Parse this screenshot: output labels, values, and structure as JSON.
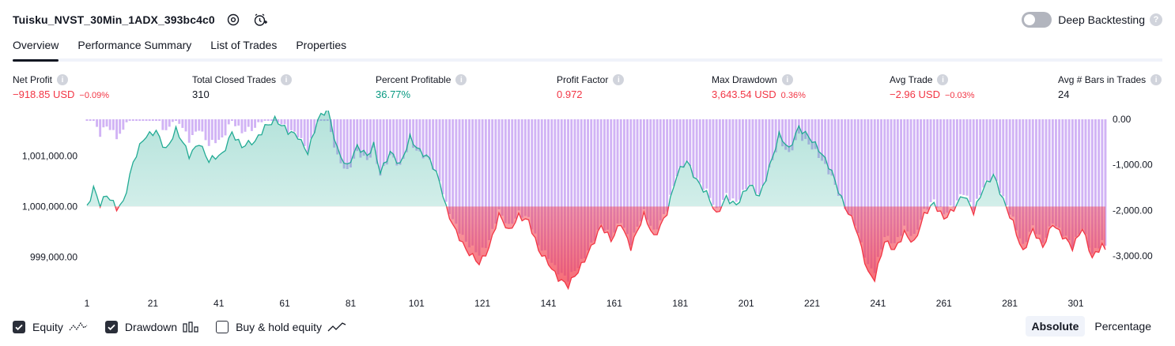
{
  "header": {
    "title": "Tuisku_NVST_30Min_1ADX_393bc4c0",
    "deep_backtesting_label": "Deep Backtesting",
    "deep_backtesting_on": false
  },
  "tabs": [
    {
      "label": "Overview",
      "active": true
    },
    {
      "label": "Performance Summary",
      "active": false
    },
    {
      "label": "List of Trades",
      "active": false
    },
    {
      "label": "Properties",
      "active": false
    }
  ],
  "metrics": {
    "net_profit": {
      "label": "Net Profit",
      "value": "−918.85 USD",
      "pct": "−0.09%"
    },
    "total_closed_trades": {
      "label": "Total Closed Trades",
      "value": "310"
    },
    "percent_profitable": {
      "label": "Percent Profitable",
      "value": "36.77%"
    },
    "profit_factor": {
      "label": "Profit Factor",
      "value": "0.972"
    },
    "max_drawdown": {
      "label": "Max Drawdown",
      "value": "3,643.54 USD",
      "pct": "0.36%"
    },
    "avg_trade": {
      "label": "Avg Trade",
      "value": "−2.96 USD",
      "pct": "−0.03%"
    },
    "avg_bars": {
      "label": "Avg # Bars in Trades",
      "value": "24"
    }
  },
  "chart_data": {
    "type": "area",
    "baseline_equity": 1000000,
    "x_ticks": [
      "1",
      "21",
      "41",
      "61",
      "81",
      "101",
      "121",
      "141",
      "161",
      "181",
      "201",
      "221",
      "241",
      "261",
      "281",
      "301"
    ],
    "y_left_ticks": [
      "1,001,000.00",
      "1,000,000.00",
      "999,000.00"
    ],
    "y_right_ticks": [
      "0.00",
      "-1,000.00",
      "-2,000.00",
      "-3,000.00"
    ],
    "y_left_range": [
      998300,
      1001900
    ],
    "y_right_range": [
      -3800,
      0
    ],
    "series": [
      {
        "name": "Equity",
        "color_positive": "#22ab94",
        "color_negative": "#f23645",
        "x_range": [
          1,
          310
        ],
        "key_points": [
          [
            1,
            1000000
          ],
          [
            3,
            1000400
          ],
          [
            5,
            1000050
          ],
          [
            7,
            1000200
          ],
          [
            10,
            999950
          ],
          [
            12,
            1000100
          ],
          [
            15,
            1000900
          ],
          [
            18,
            1001300
          ],
          [
            22,
            1001500
          ],
          [
            25,
            1001150
          ],
          [
            28,
            1001500
          ],
          [
            32,
            1001000
          ],
          [
            35,
            1001300
          ],
          [
            38,
            1000900
          ],
          [
            42,
            1001000
          ],
          [
            45,
            1001500
          ],
          [
            48,
            1001200
          ],
          [
            52,
            1001250
          ],
          [
            55,
            1001600
          ],
          [
            58,
            1001750
          ],
          [
            62,
            1001450
          ],
          [
            65,
            1001400
          ],
          [
            68,
            1001100
          ],
          [
            71,
            1001700
          ],
          [
            74,
            1001900
          ],
          [
            77,
            1001150
          ],
          [
            80,
            1000800
          ],
          [
            83,
            1001150
          ],
          [
            86,
            1001000
          ],
          [
            88,
            1001250
          ],
          [
            90,
            1000700
          ],
          [
            93,
            1001050
          ],
          [
            96,
            1000800
          ],
          [
            99,
            1001400
          ],
          [
            102,
            1001100
          ],
          [
            105,
            1000900
          ],
          [
            108,
            1000500
          ],
          [
            110,
            1000000
          ],
          [
            113,
            999500
          ],
          [
            116,
            999100
          ],
          [
            120,
            998900
          ],
          [
            123,
            999200
          ],
          [
            126,
            999800
          ],
          [
            129,
            999500
          ],
          [
            132,
            999850
          ],
          [
            135,
            999700
          ],
          [
            138,
            999100
          ],
          [
            141,
            998900
          ],
          [
            144,
            998600
          ],
          [
            147,
            998400
          ],
          [
            150,
            998700
          ],
          [
            153,
            999100
          ],
          [
            157,
            999600
          ],
          [
            160,
            999300
          ],
          [
            163,
            999700
          ],
          [
            166,
            999200
          ],
          [
            170,
            999800
          ],
          [
            173,
            999400
          ],
          [
            177,
            999900
          ],
          [
            180,
            1000600
          ],
          [
            183,
            1000900
          ],
          [
            186,
            1000550
          ],
          [
            189,
            1000250
          ],
          [
            192,
            999800
          ],
          [
            195,
            1000200
          ],
          [
            198,
            1000050
          ],
          [
            202,
            1000400
          ],
          [
            205,
            1000200
          ],
          [
            208,
            1000800
          ],
          [
            211,
            1001400
          ],
          [
            214,
            1001100
          ],
          [
            217,
            1001600
          ],
          [
            220,
            1001400
          ],
          [
            223,
            1001100
          ],
          [
            227,
            1000700
          ],
          [
            231,
            1000000
          ],
          [
            234,
            999600
          ],
          [
            238,
            998700
          ],
          [
            240,
            998600
          ],
          [
            243,
            999300
          ],
          [
            246,
            999100
          ],
          [
            249,
            999500
          ],
          [
            252,
            999300
          ],
          [
            255,
            999800
          ],
          [
            258,
            1000050
          ],
          [
            261,
            999800
          ],
          [
            264,
            999950
          ],
          [
            267,
            1000200
          ],
          [
            270,
            999900
          ],
          [
            273,
            1000400
          ],
          [
            276,
            1000600
          ],
          [
            279,
            1000100
          ],
          [
            282,
            999700
          ],
          [
            285,
            999100
          ],
          [
            288,
            999500
          ],
          [
            291,
            999200
          ],
          [
            294,
            999700
          ],
          [
            297,
            999400
          ],
          [
            300,
            999150
          ],
          [
            303,
            999600
          ],
          [
            306,
            999000
          ],
          [
            309,
            999200
          ],
          [
            310,
            999100
          ]
        ]
      },
      {
        "name": "Drawdown",
        "color": "#c9a8f0",
        "note": "per-trade drawdown bars from 0 downward"
      }
    ]
  },
  "footer": {
    "equity_label": "Equity",
    "drawdown_label": "Drawdown",
    "buyhold_label": "Buy & hold equity",
    "equity_checked": true,
    "drawdown_checked": true,
    "buyhold_checked": false,
    "absolute_label": "Absolute",
    "percentage_label": "Percentage"
  }
}
